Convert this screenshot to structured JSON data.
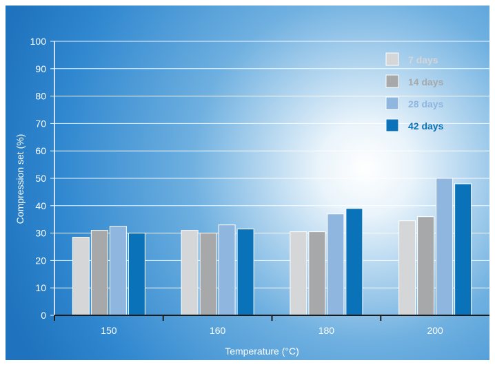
{
  "chart_data": {
    "type": "bar",
    "title": "",
    "xlabel": "Temperature (°C)",
    "ylabel": "Compression set (%)",
    "ylim": [
      0,
      100
    ],
    "yticks": [
      0,
      10,
      20,
      30,
      40,
      50,
      60,
      70,
      80,
      90,
      100
    ],
    "categories": [
      "150",
      "160",
      "180",
      "200"
    ],
    "grid": true,
    "legend_position": "top-right",
    "series": [
      {
        "name": "7 days",
        "color": "#d4d6d8",
        "values": [
          28.5,
          31.0,
          30.5,
          34.5
        ]
      },
      {
        "name": "14 days",
        "color": "#a6a8aa",
        "values": [
          31.0,
          30.0,
          30.5,
          36.0
        ]
      },
      {
        "name": "28 days",
        "color": "#8fb6df",
        "values": [
          32.5,
          33.0,
          37.0,
          50.0
        ]
      },
      {
        "name": "42 days",
        "color": "#0a72b8",
        "values": [
          30.0,
          31.5,
          39.0,
          48.0
        ]
      }
    ]
  }
}
